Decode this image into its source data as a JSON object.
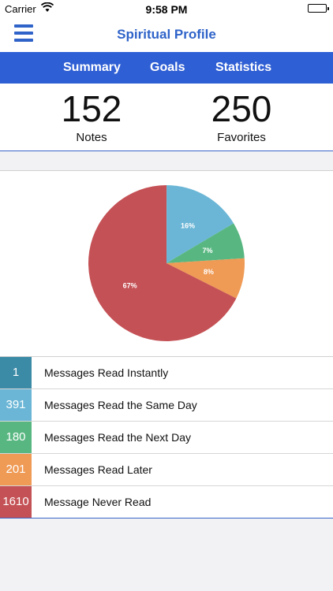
{
  "status_bar": {
    "carrier": "Carrier",
    "time": "9:58 PM"
  },
  "nav": {
    "title": "Spiritual Profile",
    "menu_icon": "hamburger-menu-icon"
  },
  "tabs": [
    {
      "label": "Summary"
    },
    {
      "label": "Goals"
    },
    {
      "label": "Statistics"
    }
  ],
  "counts": {
    "notes": {
      "value": "152",
      "label": "Notes"
    },
    "favorites": {
      "value": "250",
      "label": "Favorites"
    }
  },
  "chart_data": {
    "type": "pie",
    "categories": [
      "Messages Read Instantly",
      "Messages Read the Same Day",
      "Messages Read the Next Day",
      "Messages Read Later",
      "Message Never Read"
    ],
    "values": [
      1,
      391,
      180,
      201,
      1610
    ],
    "slice_labels": [
      "",
      "16%",
      "7%",
      "8%",
      "67%"
    ],
    "colors": [
      "#3b8aa6",
      "#6bb6d6",
      "#58b781",
      "#ef9a55",
      "#c45155"
    ]
  },
  "legend": [
    {
      "count": "1",
      "label": "Messages Read Instantly",
      "color": "#3b8aa6"
    },
    {
      "count": "391",
      "label": "Messages Read the Same Day",
      "color": "#6bb6d6"
    },
    {
      "count": "180",
      "label": "Messages Read the Next Day",
      "color": "#58b781"
    },
    {
      "count": "201",
      "label": "Messages Read Later",
      "color": "#ef9a55"
    },
    {
      "count": "1610",
      "label": "Message Never Read",
      "color": "#c45155"
    }
  ]
}
